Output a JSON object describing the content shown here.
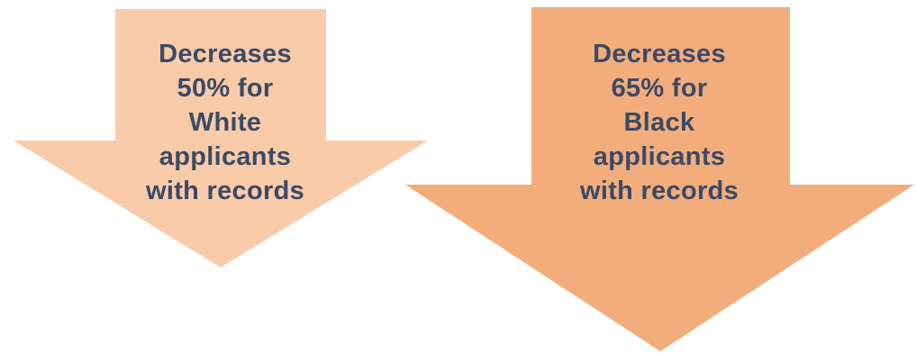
{
  "arrows": [
    {
      "id": "white",
      "lines": [
        "Decreases",
        "50% for",
        "White",
        "applicants",
        "with records"
      ],
      "fill": "#f9cba9"
    },
    {
      "id": "black",
      "lines": [
        "Decreases",
        "65% for",
        "Black",
        "applicants",
        "with records"
      ],
      "fill": "#f3ad7c"
    }
  ],
  "text_color": "#3b4a66"
}
